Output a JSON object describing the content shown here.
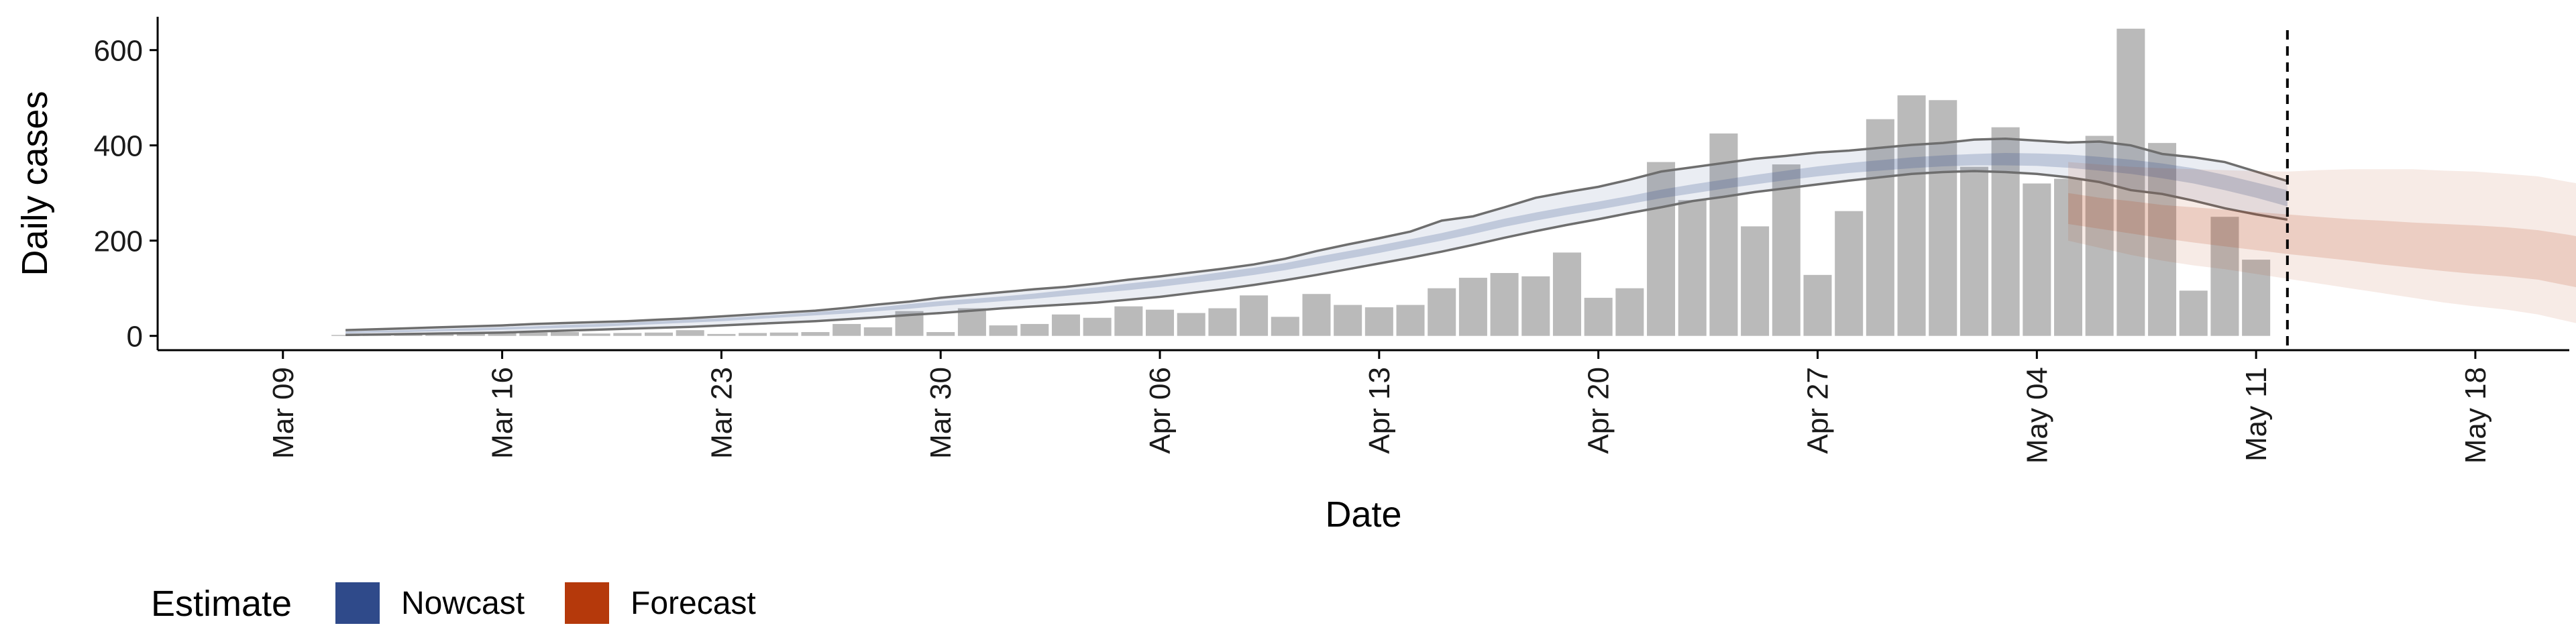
{
  "chart_data": {
    "type": "bar",
    "title": "",
    "xlabel": "Date",
    "ylabel": "Daily cases",
    "ylim": [
      -30,
      670
    ],
    "yticks": [
      0,
      200,
      400,
      600
    ],
    "x_range": [
      "2020-03-05",
      "2020-05-21"
    ],
    "x_ticks": [
      {
        "date": "2020-03-09",
        "label": "Mar 09"
      },
      {
        "date": "2020-03-16",
        "label": "Mar 16"
      },
      {
        "date": "2020-03-23",
        "label": "Mar 23"
      },
      {
        "date": "2020-03-30",
        "label": "Mar 30"
      },
      {
        "date": "2020-04-06",
        "label": "Apr 06"
      },
      {
        "date": "2020-04-13",
        "label": "Apr 13"
      },
      {
        "date": "2020-04-20",
        "label": "Apr 20"
      },
      {
        "date": "2020-04-27",
        "label": "Apr 27"
      },
      {
        "date": "2020-05-04",
        "label": "May 04"
      },
      {
        "date": "2020-05-11",
        "label": "May 11"
      },
      {
        "date": "2020-05-18",
        "label": "May 18"
      }
    ],
    "bars": {
      "start_date": "2020-03-11",
      "color": "#bababa",
      "values": [
        2,
        3,
        4,
        5,
        5,
        6,
        7,
        8,
        5,
        6,
        7,
        12,
        4,
        6,
        7,
        8,
        25,
        18,
        52,
        8,
        58,
        22,
        25,
        45,
        38,
        62,
        55,
        48,
        58,
        85,
        40,
        88,
        65,
        60,
        65,
        100,
        122,
        132,
        125,
        175,
        80,
        100,
        365,
        285,
        425,
        230,
        360,
        128,
        262,
        455,
        505,
        495,
        355,
        438,
        320,
        330,
        420,
        645,
        405,
        95,
        250,
        160
      ]
    },
    "series": [
      {
        "name": "Nowcast",
        "color": "#2f4a8a",
        "start_date": "2020-03-11",
        "median": [
          7,
          9,
          10,
          12,
          13,
          15,
          17,
          20,
          22,
          25,
          28,
          31,
          34,
          38,
          42,
          46,
          51,
          56,
          62,
          68,
          73,
          78,
          83,
          90,
          96,
          103,
          110,
          118,
          126,
          135,
          145,
          158,
          170,
          182,
          195,
          208,
          222,
          237,
          250,
          262,
          273,
          285,
          298,
          308,
          318,
          328,
          337,
          345,
          352,
          358,
          363,
          367,
          370,
          371,
          370,
          367,
          362,
          355,
          347,
          336,
          322,
          306,
          289
        ],
        "inner": {
          "lower": [
            5,
            7,
            8,
            10,
            11,
            13,
            15,
            17,
            19,
            22,
            25,
            28,
            31,
            35,
            39,
            43,
            47,
            52,
            57,
            63,
            68,
            73,
            78,
            84,
            90,
            96,
            103,
            111,
            119,
            128,
            138,
            150,
            162,
            174,
            187,
            200,
            214,
            229,
            242,
            254,
            265,
            277,
            289,
            299,
            309,
            318,
            327,
            335,
            342,
            347,
            352,
            356,
            358,
            358,
            357,
            353,
            347,
            340,
            331,
            320,
            306,
            290,
            272
          ],
          "upper": [
            9,
            11,
            12,
            14,
            16,
            18,
            20,
            23,
            25,
            28,
            31,
            34,
            37,
            41,
            45,
            50,
            55,
            60,
            67,
            73,
            78,
            83,
            89,
            96,
            102,
            110,
            117,
            125,
            134,
            143,
            153,
            166,
            178,
            190,
            203,
            216,
            231,
            246,
            259,
            271,
            282,
            294,
            307,
            318,
            328,
            338,
            347,
            356,
            363,
            369,
            375,
            379,
            382,
            384,
            383,
            381,
            376,
            370,
            362,
            352,
            338,
            322,
            306
          ]
        },
        "outer": {
          "lower": [
            2,
            3,
            4,
            5,
            6,
            7,
            9,
            11,
            13,
            15,
            17,
            19,
            22,
            25,
            28,
            31,
            35,
            39,
            44,
            48,
            53,
            58,
            62,
            66,
            70,
            76,
            82,
            90,
            98,
            107,
            117,
            128,
            140,
            152,
            164,
            177,
            191,
            206,
            220,
            233,
            245,
            258,
            270,
            283,
            292,
            302,
            310,
            318,
            326,
            333,
            340,
            344,
            346,
            344,
            340,
            333,
            323,
            306,
            298,
            284,
            268,
            255,
            244
          ],
          "upper": [
            12,
            14,
            16,
            18,
            20,
            22,
            25,
            27,
            29,
            31,
            34,
            37,
            41,
            45,
            49,
            53,
            59,
            66,
            72,
            80,
            86,
            92,
            98,
            103,
            110,
            118,
            125,
            133,
            141,
            150,
            162,
            178,
            192,
            205,
            219,
            242,
            251,
            270,
            290,
            302,
            313,
            328,
            345,
            354,
            363,
            372,
            378,
            385,
            389,
            395,
            401,
            405,
            412,
            414,
            410,
            406,
            408,
            400,
            382,
            375,
            365,
            345,
            325
          ]
        }
      },
      {
        "name": "Forecast",
        "color": "#b5390b",
        "start_date": "2020-05-05",
        "median": [
          262,
          253,
          244,
          236,
          228,
          220,
          213,
          206,
          200,
          194,
          188,
          183,
          178,
          173,
          168,
          163,
          155,
          148,
          142,
          137,
          133,
          130,
          127
        ],
        "inner": {
          "lower": [
            235,
            225,
            215,
            205,
            196,
            188,
            180,
            172,
            165,
            158,
            150,
            143,
            136,
            130,
            125,
            118,
            105,
            92,
            80,
            70,
            62,
            56,
            52
          ],
          "upper": [
            300,
            290,
            283,
            275,
            270,
            265,
            260,
            255,
            250,
            245,
            242,
            238,
            235,
            232,
            228,
            222,
            212,
            200,
            190,
            182,
            177,
            174,
            172
          ]
        },
        "outer": {
          "lower": [
            200,
            185,
            170,
            158,
            148,
            140,
            130,
            120,
            110,
            100,
            90,
            80,
            70,
            62,
            55,
            45,
            30,
            15,
            5,
            0,
            0,
            0,
            0
          ],
          "upper": [
            365,
            360,
            355,
            352,
            350,
            348,
            346,
            345,
            348,
            350,
            350,
            350,
            347,
            345,
            340,
            335,
            323,
            312,
            305,
            300,
            298,
            297,
            297
          ]
        }
      }
    ],
    "vline": {
      "date": "2020-05-12",
      "style": "dashed"
    },
    "legend": {
      "title": "Estimate",
      "position": "bottom-left"
    },
    "grid": false
  }
}
